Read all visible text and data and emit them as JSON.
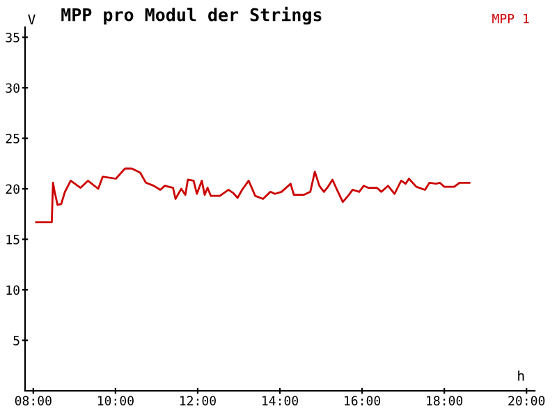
{
  "chart_data": {
    "type": "line",
    "title": "MPP pro Modul der Strings",
    "xlabel": "h",
    "ylabel": "V",
    "legend": "top right",
    "marker": "none",
    "line_style": "solid",
    "grid": false,
    "xlim": [
      7.8,
      20.2
    ],
    "ylim": [
      0,
      36
    ],
    "xticks": [
      {
        "value": 8,
        "label": "08:00"
      },
      {
        "value": 10,
        "label": "10:00"
      },
      {
        "value": 12,
        "label": "12:00"
      },
      {
        "value": 14,
        "label": "14:00"
      },
      {
        "value": 16,
        "label": "16:00"
      },
      {
        "value": 18,
        "label": "18:00"
      },
      {
        "value": 20,
        "label": "20:00"
      }
    ],
    "yticks": [
      5,
      10,
      15,
      20,
      25,
      30,
      35
    ],
    "series": [
      {
        "name": "MPP 1",
        "color": "#cc0000",
        "x": [
          8.07,
          8.45,
          8.48,
          8.52,
          8.59,
          8.68,
          8.77,
          8.91,
          9.15,
          9.33,
          9.58,
          9.69,
          10.01,
          10.23,
          10.4,
          10.6,
          10.74,
          10.93,
          11.09,
          11.2,
          11.4,
          11.46,
          11.6,
          11.7,
          11.76,
          11.9,
          11.98,
          12.1,
          12.17,
          12.24,
          12.32,
          12.54,
          12.75,
          12.86,
          12.97,
          13.08,
          13.24,
          13.4,
          13.59,
          13.77,
          13.88,
          14.04,
          14.26,
          14.34,
          14.58,
          14.74,
          14.85,
          14.96,
          15.07,
          15.17,
          15.28,
          15.39,
          15.53,
          15.66,
          15.77,
          15.93,
          16.04,
          16.15,
          16.36,
          16.47,
          16.63,
          16.79,
          16.95,
          17.06,
          17.14,
          17.32,
          17.53,
          17.64,
          17.8,
          17.89,
          18.0,
          18.24,
          18.37,
          18.61
        ],
        "values": [
          16.7,
          16.7,
          20.6,
          19.7,
          18.4,
          18.5,
          19.7,
          20.8,
          20.1,
          20.8,
          20.0,
          21.2,
          21.0,
          22.0,
          22.0,
          21.6,
          20.6,
          20.3,
          19.9,
          20.3,
          20.1,
          19.0,
          20.0,
          19.4,
          20.9,
          20.8,
          19.5,
          20.8,
          19.4,
          20.1,
          19.3,
          19.3,
          19.9,
          19.6,
          19.1,
          19.9,
          20.8,
          19.3,
          19.0,
          19.7,
          19.5,
          19.7,
          20.5,
          19.4,
          19.4,
          19.7,
          21.7,
          20.3,
          19.7,
          20.2,
          20.9,
          19.9,
          18.7,
          19.3,
          19.9,
          19.7,
          20.3,
          20.1,
          20.1,
          19.7,
          20.3,
          19.5,
          20.8,
          20.5,
          21.0,
          20.2,
          19.9,
          20.6,
          20.5,
          20.6,
          20.2,
          20.2,
          20.6,
          20.6
        ]
      }
    ]
  }
}
